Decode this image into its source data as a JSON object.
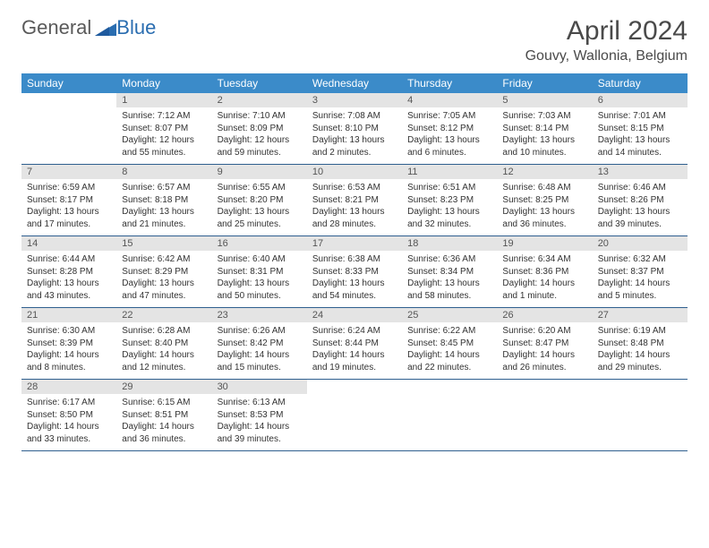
{
  "logo": {
    "general": "General",
    "blue": "Blue"
  },
  "title": "April 2024",
  "location": "Gouvy, Wallonia, Belgium",
  "colors": {
    "header_bg": "#3b8bc9",
    "header_text": "#ffffff",
    "daynum_bg": "#e4e4e4",
    "border": "#2f5f8f",
    "body_text": "#333333"
  },
  "day_names": [
    "Sunday",
    "Monday",
    "Tuesday",
    "Wednesday",
    "Thursday",
    "Friday",
    "Saturday"
  ],
  "weeks": [
    [
      {
        "n": "",
        "sr": "",
        "ss": "",
        "dl": ""
      },
      {
        "n": "1",
        "sr": "Sunrise: 7:12 AM",
        "ss": "Sunset: 8:07 PM",
        "dl": "Daylight: 12 hours and 55 minutes."
      },
      {
        "n": "2",
        "sr": "Sunrise: 7:10 AM",
        "ss": "Sunset: 8:09 PM",
        "dl": "Daylight: 12 hours and 59 minutes."
      },
      {
        "n": "3",
        "sr": "Sunrise: 7:08 AM",
        "ss": "Sunset: 8:10 PM",
        "dl": "Daylight: 13 hours and 2 minutes."
      },
      {
        "n": "4",
        "sr": "Sunrise: 7:05 AM",
        "ss": "Sunset: 8:12 PM",
        "dl": "Daylight: 13 hours and 6 minutes."
      },
      {
        "n": "5",
        "sr": "Sunrise: 7:03 AM",
        "ss": "Sunset: 8:14 PM",
        "dl": "Daylight: 13 hours and 10 minutes."
      },
      {
        "n": "6",
        "sr": "Sunrise: 7:01 AM",
        "ss": "Sunset: 8:15 PM",
        "dl": "Daylight: 13 hours and 14 minutes."
      }
    ],
    [
      {
        "n": "7",
        "sr": "Sunrise: 6:59 AM",
        "ss": "Sunset: 8:17 PM",
        "dl": "Daylight: 13 hours and 17 minutes."
      },
      {
        "n": "8",
        "sr": "Sunrise: 6:57 AM",
        "ss": "Sunset: 8:18 PM",
        "dl": "Daylight: 13 hours and 21 minutes."
      },
      {
        "n": "9",
        "sr": "Sunrise: 6:55 AM",
        "ss": "Sunset: 8:20 PM",
        "dl": "Daylight: 13 hours and 25 minutes."
      },
      {
        "n": "10",
        "sr": "Sunrise: 6:53 AM",
        "ss": "Sunset: 8:21 PM",
        "dl": "Daylight: 13 hours and 28 minutes."
      },
      {
        "n": "11",
        "sr": "Sunrise: 6:51 AM",
        "ss": "Sunset: 8:23 PM",
        "dl": "Daylight: 13 hours and 32 minutes."
      },
      {
        "n": "12",
        "sr": "Sunrise: 6:48 AM",
        "ss": "Sunset: 8:25 PM",
        "dl": "Daylight: 13 hours and 36 minutes."
      },
      {
        "n": "13",
        "sr": "Sunrise: 6:46 AM",
        "ss": "Sunset: 8:26 PM",
        "dl": "Daylight: 13 hours and 39 minutes."
      }
    ],
    [
      {
        "n": "14",
        "sr": "Sunrise: 6:44 AM",
        "ss": "Sunset: 8:28 PM",
        "dl": "Daylight: 13 hours and 43 minutes."
      },
      {
        "n": "15",
        "sr": "Sunrise: 6:42 AM",
        "ss": "Sunset: 8:29 PM",
        "dl": "Daylight: 13 hours and 47 minutes."
      },
      {
        "n": "16",
        "sr": "Sunrise: 6:40 AM",
        "ss": "Sunset: 8:31 PM",
        "dl": "Daylight: 13 hours and 50 minutes."
      },
      {
        "n": "17",
        "sr": "Sunrise: 6:38 AM",
        "ss": "Sunset: 8:33 PM",
        "dl": "Daylight: 13 hours and 54 minutes."
      },
      {
        "n": "18",
        "sr": "Sunrise: 6:36 AM",
        "ss": "Sunset: 8:34 PM",
        "dl": "Daylight: 13 hours and 58 minutes."
      },
      {
        "n": "19",
        "sr": "Sunrise: 6:34 AM",
        "ss": "Sunset: 8:36 PM",
        "dl": "Daylight: 14 hours and 1 minute."
      },
      {
        "n": "20",
        "sr": "Sunrise: 6:32 AM",
        "ss": "Sunset: 8:37 PM",
        "dl": "Daylight: 14 hours and 5 minutes."
      }
    ],
    [
      {
        "n": "21",
        "sr": "Sunrise: 6:30 AM",
        "ss": "Sunset: 8:39 PM",
        "dl": "Daylight: 14 hours and 8 minutes."
      },
      {
        "n": "22",
        "sr": "Sunrise: 6:28 AM",
        "ss": "Sunset: 8:40 PM",
        "dl": "Daylight: 14 hours and 12 minutes."
      },
      {
        "n": "23",
        "sr": "Sunrise: 6:26 AM",
        "ss": "Sunset: 8:42 PM",
        "dl": "Daylight: 14 hours and 15 minutes."
      },
      {
        "n": "24",
        "sr": "Sunrise: 6:24 AM",
        "ss": "Sunset: 8:44 PM",
        "dl": "Daylight: 14 hours and 19 minutes."
      },
      {
        "n": "25",
        "sr": "Sunrise: 6:22 AM",
        "ss": "Sunset: 8:45 PM",
        "dl": "Daylight: 14 hours and 22 minutes."
      },
      {
        "n": "26",
        "sr": "Sunrise: 6:20 AM",
        "ss": "Sunset: 8:47 PM",
        "dl": "Daylight: 14 hours and 26 minutes."
      },
      {
        "n": "27",
        "sr": "Sunrise: 6:19 AM",
        "ss": "Sunset: 8:48 PM",
        "dl": "Daylight: 14 hours and 29 minutes."
      }
    ],
    [
      {
        "n": "28",
        "sr": "Sunrise: 6:17 AM",
        "ss": "Sunset: 8:50 PM",
        "dl": "Daylight: 14 hours and 33 minutes."
      },
      {
        "n": "29",
        "sr": "Sunrise: 6:15 AM",
        "ss": "Sunset: 8:51 PM",
        "dl": "Daylight: 14 hours and 36 minutes."
      },
      {
        "n": "30",
        "sr": "Sunrise: 6:13 AM",
        "ss": "Sunset: 8:53 PM",
        "dl": "Daylight: 14 hours and 39 minutes."
      },
      {
        "n": "",
        "sr": "",
        "ss": "",
        "dl": ""
      },
      {
        "n": "",
        "sr": "",
        "ss": "",
        "dl": ""
      },
      {
        "n": "",
        "sr": "",
        "ss": "",
        "dl": ""
      },
      {
        "n": "",
        "sr": "",
        "ss": "",
        "dl": ""
      }
    ]
  ]
}
